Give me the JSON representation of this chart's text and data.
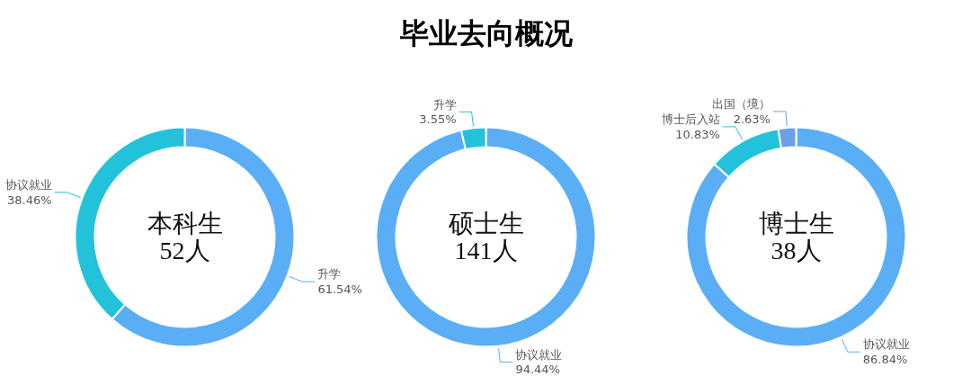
{
  "chart_data": [
    {
      "type": "donut",
      "annotations": [
        "本科生",
        "52人"
      ],
      "categories": [
        "升学",
        "协议就业"
      ],
      "values": [
        61.54,
        38.46
      ],
      "value_labels": [
        "61.54%",
        "38.46%"
      ],
      "colors": [
        "#5aaef5",
        "#22c3da"
      ],
      "legend": false
    },
    {
      "type": "donut",
      "title": "毕业去向概况",
      "annotations": [
        "硕士生",
        "141人"
      ],
      "categories": [
        "协议就业",
        "升学"
      ],
      "values": [
        94.44,
        3.55
      ],
      "value_labels": [
        "94.44%",
        "3.55%"
      ],
      "colors": [
        "#5aaef5",
        "#22c3da"
      ],
      "legend": false
    },
    {
      "type": "donut",
      "annotations": [
        "博士生",
        "38人"
      ],
      "categories": [
        "协议就业",
        "博士后入站",
        "出国（境）"
      ],
      "values": [
        86.84,
        10.83,
        2.63
      ],
      "value_labels": [
        "86.84%",
        "10.83%",
        "2.63%"
      ],
      "colors": [
        "#5aaef5",
        "#22c3da",
        "#6e9ee8"
      ],
      "legend": false
    }
  ]
}
